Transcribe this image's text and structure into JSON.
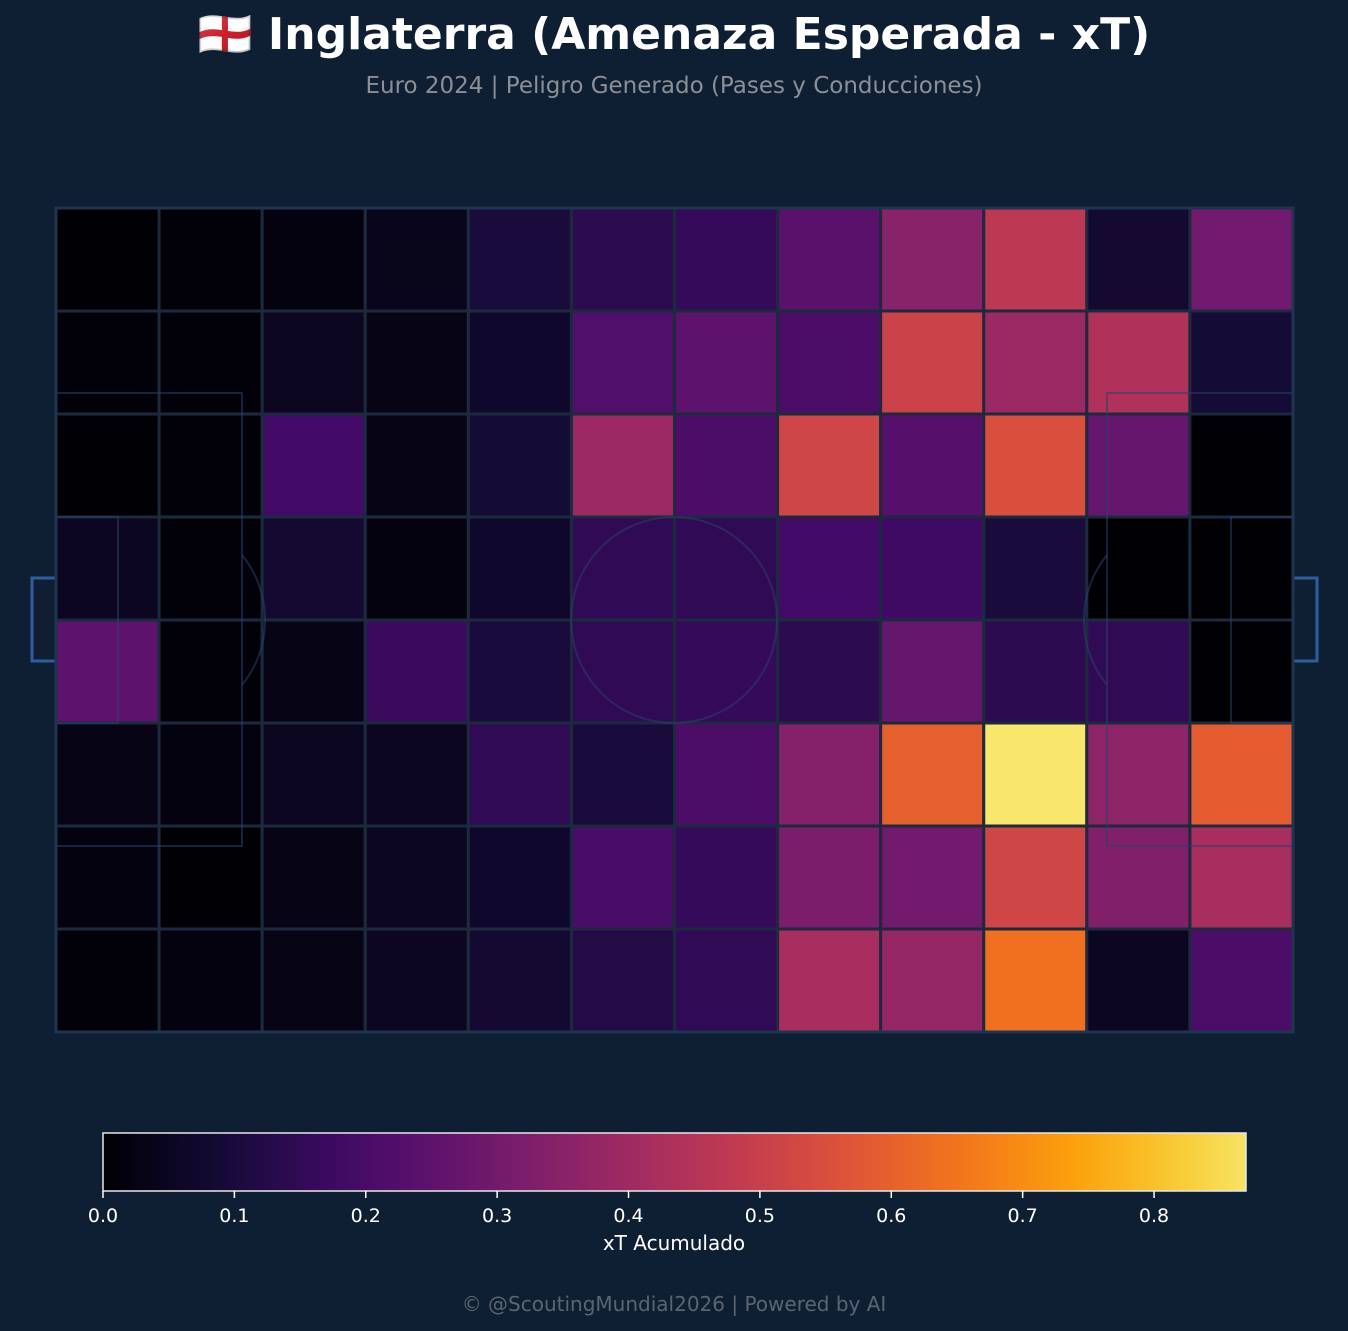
{
  "header": {
    "title": "🏴󠁧󠁢󠁥󠁮󠁧󠁿 Inglaterra (Amenaza Esperada - xT)",
    "subtitle": "Euro 2024 | Peligro Generado (Pases y Conducciones)"
  },
  "footer": {
    "text": "© @ScoutingMundial2026 | Powered by AI"
  },
  "chart_data": {
    "type": "heatmap",
    "title": "🏴󠁧󠁢󠁥󠁮󠁧󠁿 Inglaterra (Amenaza Esperada - xT)",
    "subtitle": "Euro 2024 | Peligro Generado (Pases y Conducciones)",
    "colormap": "inferno",
    "grid": {
      "columns": 12,
      "rows": 8
    },
    "values": [
      [
        0.0,
        0.01,
        0.02,
        0.04,
        0.1,
        0.14,
        0.16,
        0.24,
        0.35,
        0.47,
        0.08,
        0.3
      ],
      [
        0.01,
        0.01,
        0.05,
        0.03,
        0.07,
        0.22,
        0.25,
        0.21,
        0.51,
        0.39,
        0.44,
        0.09
      ],
      [
        0.0,
        0.01,
        0.19,
        0.03,
        0.09,
        0.39,
        0.21,
        0.52,
        0.23,
        0.55,
        0.27,
        0.0
      ],
      [
        0.05,
        0.01,
        0.08,
        0.02,
        0.07,
        0.15,
        0.15,
        0.19,
        0.18,
        0.1,
        0.0,
        0.0
      ],
      [
        0.25,
        0.01,
        0.03,
        0.17,
        0.1,
        0.15,
        0.16,
        0.14,
        0.27,
        0.14,
        0.15,
        0.0
      ],
      [
        0.03,
        0.02,
        0.05,
        0.05,
        0.15,
        0.1,
        0.21,
        0.34,
        0.6,
        0.88,
        0.36,
        0.59
      ],
      [
        0.02,
        0.0,
        0.03,
        0.05,
        0.07,
        0.2,
        0.16,
        0.32,
        0.3,
        0.52,
        0.33,
        0.42
      ],
      [
        0.01,
        0.02,
        0.03,
        0.05,
        0.08,
        0.12,
        0.15,
        0.42,
        0.38,
        0.64,
        0.05,
        0.21
      ]
    ],
    "colorbar": {
      "label": "xT Acumulado",
      "range": [
        0.0,
        0.87
      ],
      "ticks": [
        "0.0",
        "0.1",
        "0.2",
        "0.3",
        "0.4",
        "0.5",
        "0.6",
        "0.7",
        "0.8"
      ]
    },
    "colors": {
      "background": "#0f1f33",
      "pitch_lines": "#1e3550",
      "goal": "#2e5e9e",
      "cell_border": "#1c2a3e"
    }
  }
}
